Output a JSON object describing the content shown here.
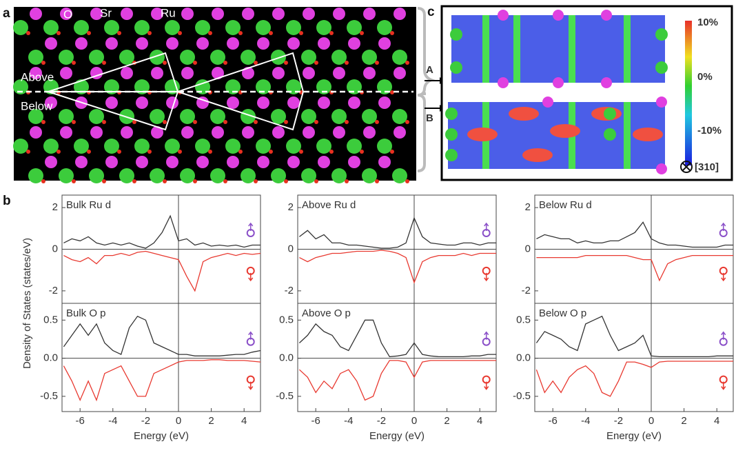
{
  "figure": {
    "panel_a": "a",
    "panel_b": "b",
    "panel_c": "c",
    "atom_o": "O",
    "atom_sr": "Sr",
    "atom_ru": "Ru",
    "above": "Above",
    "below": "Below",
    "arrow_a": "A",
    "arrow_b": "B",
    "cbar_top": "10%",
    "cbar_mid": "0%",
    "cbar_bottom": "-10%",
    "direction": "[310]",
    "ylabel": "Density of States (states/eV)"
  },
  "chart_data": [
    {
      "type": "line",
      "title": "Bulk Ru d",
      "xlim": [
        -7.1,
        5
      ],
      "ylim": [
        -2.6,
        2.6
      ],
      "yticks": [
        -2,
        0,
        2
      ],
      "x": [
        -7,
        -6.5,
        -6,
        -5.5,
        -5,
        -4.5,
        -4,
        -3.5,
        -3,
        -2.5,
        -2,
        -1.5,
        -1,
        -0.5,
        0,
        0.5,
        1,
        1.5,
        2,
        2.5,
        3,
        3.5,
        4,
        4.5,
        5
      ],
      "series": [
        {
          "color": "#333333",
          "values": [
            0.3,
            0.5,
            0.4,
            0.6,
            0.3,
            0.2,
            0.3,
            0.2,
            0.3,
            0.15,
            0.05,
            0.3,
            0.8,
            1.6,
            0.4,
            0.5,
            0.2,
            0.3,
            0.15,
            0.2,
            0.15,
            0.2,
            0.1,
            0.2,
            0.2
          ]
        },
        {
          "color": "#e8382f",
          "values": [
            -0.3,
            -0.5,
            -0.6,
            -0.4,
            -0.7,
            -0.3,
            -0.3,
            -0.2,
            -0.3,
            -0.15,
            -0.1,
            -0.2,
            -0.3,
            -0.4,
            -0.5,
            -1.3,
            -2.0,
            -0.6,
            -0.4,
            -0.3,
            -0.2,
            -0.3,
            -0.2,
            -0.25,
            -0.2
          ]
        }
      ]
    },
    {
      "type": "line",
      "title": "Above Ru d",
      "xlim": [
        -7.1,
        5
      ],
      "ylim": [
        -2.6,
        2.6
      ],
      "yticks": [
        -2,
        0,
        2
      ],
      "x": [
        -7,
        -6.5,
        -6,
        -5.5,
        -5,
        -4.5,
        -4,
        -3.5,
        -3,
        -2.5,
        -2,
        -1.5,
        -1,
        -0.5,
        0,
        0.5,
        1,
        1.5,
        2,
        2.5,
        3,
        3.5,
        4,
        4.5,
        5
      ],
      "series": [
        {
          "color": "#333333",
          "values": [
            0.6,
            0.9,
            0.5,
            0.7,
            0.3,
            0.3,
            0.2,
            0.2,
            0.15,
            0.1,
            0.05,
            0.05,
            0.1,
            0.3,
            1.5,
            0.6,
            0.3,
            0.25,
            0.2,
            0.2,
            0.3,
            0.3,
            0.2,
            0.3,
            0.3
          ]
        },
        {
          "color": "#e8382f",
          "values": [
            -0.4,
            -0.6,
            -0.4,
            -0.3,
            -0.2,
            -0.2,
            -0.15,
            -0.1,
            -0.1,
            -0.1,
            -0.05,
            -0.1,
            -0.2,
            -0.4,
            -1.6,
            -0.6,
            -0.4,
            -0.3,
            -0.3,
            -0.3,
            -0.2,
            -0.3,
            -0.2,
            -0.2,
            -0.2
          ]
        }
      ]
    },
    {
      "type": "line",
      "title": "Below Ru d",
      "xlim": [
        -7.1,
        5
      ],
      "ylim": [
        -2.6,
        2.6
      ],
      "yticks": [
        -2,
        0,
        2
      ],
      "x": [
        -7,
        -6.5,
        -6,
        -5.5,
        -5,
        -4.5,
        -4,
        -3.5,
        -3,
        -2.5,
        -2,
        -1.5,
        -1,
        -0.5,
        0,
        0.5,
        1,
        1.5,
        2,
        2.5,
        3,
        3.5,
        4,
        4.5,
        5
      ],
      "series": [
        {
          "color": "#333333",
          "values": [
            0.5,
            0.7,
            0.6,
            0.5,
            0.5,
            0.3,
            0.4,
            0.3,
            0.3,
            0.4,
            0.4,
            0.6,
            0.8,
            1.3,
            0.5,
            0.3,
            0.2,
            0.2,
            0.15,
            0.1,
            0.1,
            0.1,
            0.1,
            0.2,
            0.2
          ]
        },
        {
          "color": "#e8382f",
          "values": [
            -0.4,
            -0.4,
            -0.4,
            -0.4,
            -0.4,
            -0.4,
            -0.3,
            -0.3,
            -0.3,
            -0.3,
            -0.3,
            -0.3,
            -0.4,
            -0.5,
            -0.5,
            -1.5,
            -0.7,
            -0.5,
            -0.4,
            -0.3,
            -0.3,
            -0.3,
            -0.3,
            -0.3,
            -0.3
          ]
        }
      ]
    },
    {
      "type": "line",
      "title": "Bulk O p",
      "xlabel": "Energy (eV)",
      "xlim": [
        -7.1,
        5
      ],
      "xticks": [
        -6,
        -4,
        -2,
        0,
        2,
        4
      ],
      "ylim": [
        -0.7,
        0.72
      ],
      "yticks": [
        -0.5,
        {
          "value": 0,
          "label": "0.0"
        },
        0.5
      ],
      "x": [
        -7,
        -6.5,
        -6,
        -5.5,
        -5,
        -4.5,
        -4,
        -3.5,
        -3,
        -2.5,
        -2,
        -1.5,
        -1,
        -0.5,
        0,
        0.5,
        1,
        1.5,
        2,
        2.5,
        3,
        3.5,
        4,
        4.5,
        5
      ],
      "series": [
        {
          "color": "#333333",
          "values": [
            0.15,
            0.3,
            0.45,
            0.3,
            0.45,
            0.2,
            0.1,
            0.05,
            0.4,
            0.55,
            0.5,
            0.2,
            0.15,
            0.1,
            0.05,
            0.05,
            0.03,
            0.03,
            0.03,
            0.03,
            0.04,
            0.05,
            0.05,
            0.08,
            0.1
          ]
        },
        {
          "color": "#e8382f",
          "values": [
            -0.1,
            -0.3,
            -0.55,
            -0.3,
            -0.55,
            -0.2,
            -0.15,
            -0.1,
            -0.3,
            -0.5,
            -0.5,
            -0.2,
            -0.15,
            -0.1,
            -0.05,
            -0.03,
            -0.03,
            -0.03,
            -0.02,
            -0.02,
            -0.03,
            -0.03,
            -0.03,
            -0.04,
            -0.05
          ]
        }
      ]
    },
    {
      "type": "line",
      "title": "Above O p",
      "xlabel": "Energy (eV)",
      "xlim": [
        -7.1,
        5
      ],
      "xticks": [
        -6,
        -4,
        -2,
        0,
        2,
        4
      ],
      "ylim": [
        -0.7,
        0.72
      ],
      "yticks": [
        -0.5,
        {
          "value": 0,
          "label": "0.0"
        },
        0.5
      ],
      "x": [
        -7,
        -6.5,
        -6,
        -5.5,
        -5,
        -4.5,
        -4,
        -3.5,
        -3,
        -2.5,
        -2,
        -1.5,
        -1,
        -0.5,
        0,
        0.5,
        1,
        1.5,
        2,
        2.5,
        3,
        3.5,
        4,
        4.5,
        5
      ],
      "series": [
        {
          "color": "#333333",
          "values": [
            0.2,
            0.3,
            0.45,
            0.35,
            0.3,
            0.15,
            0.1,
            0.3,
            0.5,
            0.5,
            0.2,
            0.02,
            0.03,
            0.05,
            0.2,
            0.05,
            0.03,
            0.02,
            0.02,
            0.02,
            0.02,
            0.03,
            0.03,
            0.05,
            0.05
          ]
        },
        {
          "color": "#e8382f",
          "values": [
            -0.15,
            -0.25,
            -0.45,
            -0.3,
            -0.4,
            -0.2,
            -0.15,
            -0.3,
            -0.55,
            -0.5,
            -0.2,
            -0.03,
            -0.03,
            -0.05,
            -0.25,
            -0.05,
            -0.03,
            -0.03,
            -0.03,
            -0.03,
            -0.03,
            -0.03,
            -0.03,
            -0.03,
            -0.03
          ]
        }
      ]
    },
    {
      "type": "line",
      "title": "Below O p",
      "xlabel": "Energy (eV)",
      "xlim": [
        -7.1,
        5
      ],
      "xticks": [
        -6,
        -4,
        -2,
        0,
        2,
        4
      ],
      "ylim": [
        -0.7,
        0.72
      ],
      "yticks": [
        -0.5,
        {
          "value": 0,
          "label": "0.0"
        },
        0.5
      ],
      "x": [
        -7,
        -6.5,
        -6,
        -5.5,
        -5,
        -4.5,
        -4,
        -3.5,
        -3,
        -2.5,
        -2,
        -1.5,
        -1,
        -0.5,
        0,
        0.5,
        1,
        1.5,
        2,
        2.5,
        3,
        3.5,
        4,
        4.5,
        5
      ],
      "series": [
        {
          "color": "#333333",
          "values": [
            0.2,
            0.35,
            0.3,
            0.25,
            0.15,
            0.1,
            0.45,
            0.5,
            0.55,
            0.3,
            0.1,
            0.15,
            0.2,
            0.3,
            0.03,
            0.02,
            0.02,
            0.02,
            0.02,
            0.02,
            0.02,
            0.02,
            0.03,
            0.03,
            0.03
          ]
        },
        {
          "color": "#e8382f",
          "values": [
            -0.15,
            -0.45,
            -0.3,
            -0.45,
            -0.25,
            -0.15,
            -0.1,
            -0.2,
            -0.45,
            -0.5,
            -0.3,
            -0.05,
            -0.05,
            -0.08,
            -0.12,
            -0.05,
            -0.04,
            -0.04,
            -0.04,
            -0.04,
            -0.04,
            -0.04,
            -0.04,
            -0.04,
            -0.04
          ]
        }
      ]
    }
  ]
}
